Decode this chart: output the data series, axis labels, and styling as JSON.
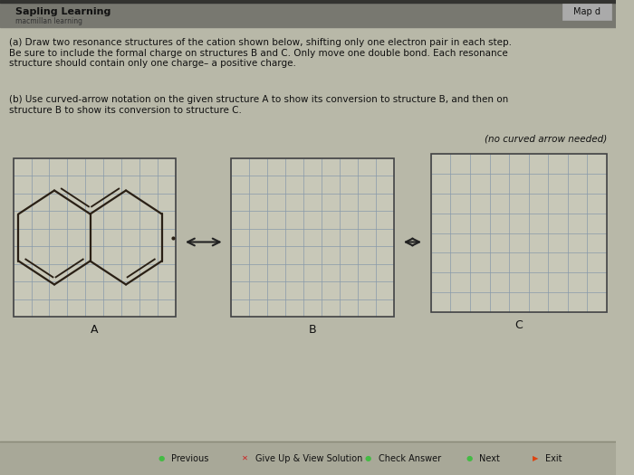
{
  "bg_color": "#b8b8a8",
  "grid_color": "#8899aa",
  "box_bg_color": "#c8c8b8",
  "box_border_color": "#444444",
  "header_bg": "#888880",
  "header_text": "Sapling Learning",
  "header_subtext": "macmillan learning",
  "map_button": "Map d",
  "title_a": "(a) Draw two resonance structures of the cation shown below, shifting only one electron pair in each step.\nBe sure to include the formal charge on structures B and C. Only move one double bond. Each resonance\nstructure should contain only one charge– a positive charge.",
  "title_b": "(b) Use curved-arrow notation on the given structure A to show its conversion to structure B, and then on\nstructure B to show its conversion to structure C.",
  "no_arrow_note": "(no curved arrow needed)",
  "label_A": "A",
  "label_B": "B",
  "label_C": "C",
  "naphthalene_color": "#2a2015",
  "naphthalene_lw": 1.6,
  "footer_items": [
    "Previous",
    "Give Up & View Solution",
    "Check Answer",
    "Next",
    "Exit"
  ],
  "footer_dot_colors": [
    "#44bb44",
    "#cc2222",
    "#44bb44",
    "#44bb44",
    "#dd4411"
  ],
  "footer_bg": "#a8a898"
}
